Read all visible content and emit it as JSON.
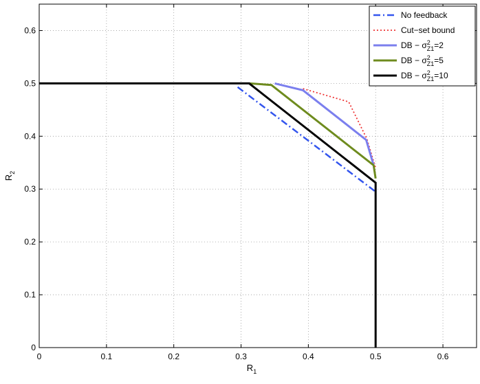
{
  "chart_data": {
    "type": "line",
    "xlabel": "R",
    "xlabel_sub": "1",
    "ylabel": "R",
    "ylabel_sub": "2",
    "xlim": [
      0,
      0.65
    ],
    "ylim": [
      0,
      0.65
    ],
    "xticks": [
      0,
      0.1,
      0.2,
      0.3,
      0.4,
      0.5,
      0.6
    ],
    "yticks": [
      0,
      0.1,
      0.2,
      0.3,
      0.4,
      0.5,
      0.6
    ],
    "grid": true,
    "legend_position": "top-right",
    "series": [
      {
        "name": "No feedback",
        "legend": {
          "prefix": "No feedback"
        },
        "color": "#3355ee",
        "style": "dashdot",
        "x": [
          0.295,
          0.5
        ],
        "y": [
          0.493,
          0.295
        ]
      },
      {
        "name": "Cut-set bound",
        "legend": {
          "prefix": "Cut−set bound"
        },
        "color": "#ee3333",
        "style": "dotted",
        "x": [
          0.392,
          0.46,
          0.487,
          0.5
        ],
        "y": [
          0.49,
          0.465,
          0.395,
          0.34
        ]
      },
      {
        "name": "DB - sigma^2_Z1=2",
        "legend": {
          "prefix": "DB − σ",
          "sup": "2",
          "sub": "Z1",
          "suffix": "=2"
        },
        "color": "#7b7fee",
        "style": "solid",
        "x": [
          0.35,
          0.392,
          0.486,
          0.497
        ],
        "y": [
          0.5,
          0.487,
          0.393,
          0.345
        ]
      },
      {
        "name": "DB - sigma^2_Z1=5",
        "legend": {
          "prefix": "DB − σ",
          "sup": "2",
          "sub": "Z1",
          "suffix": "=5"
        },
        "color": "#6e8b1e",
        "style": "solid",
        "x": [
          0.312,
          0.345,
          0.497,
          0.5
        ],
        "y": [
          0.5,
          0.497,
          0.345,
          0.32
        ]
      },
      {
        "name": "DB - sigma^2_Z1=10",
        "legend": {
          "prefix": "DB − σ",
          "sup": "2",
          "sub": "Z1",
          "suffix": "=10"
        },
        "color": "#000000",
        "style": "solid",
        "x": [
          0,
          0.312,
          0.5,
          0.5
        ],
        "y": [
          0.5,
          0.5,
          0.312,
          0
        ]
      }
    ]
  }
}
